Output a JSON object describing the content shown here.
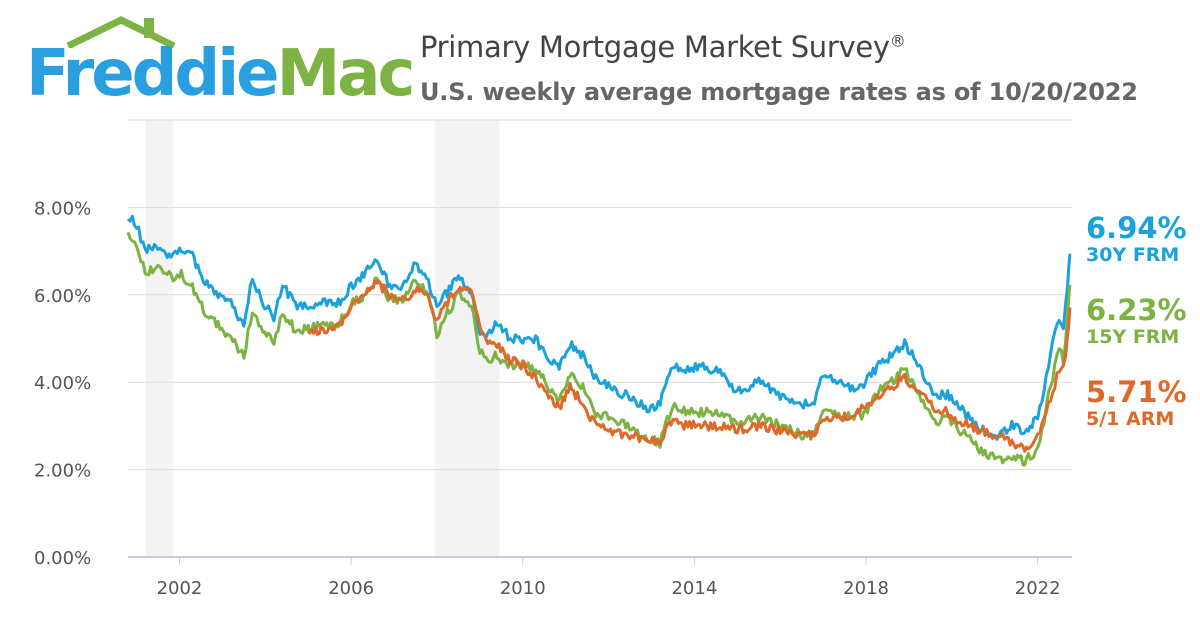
{
  "brand": {
    "logo_part1": "Freddie",
    "logo_part2": "Mac",
    "colors": {
      "blue": "#2a9fe0",
      "green": "#7cb342"
    }
  },
  "header": {
    "title": "Primary Mortgage Market Survey",
    "title_mark": "®",
    "subtitle": "U.S. weekly average mortgage rates as of 10/20/2022"
  },
  "chart_data": {
    "type": "line",
    "title": "Primary Mortgage Market Survey®",
    "subtitle": "U.S. weekly average mortgage rates as of 10/20/2022",
    "xlabel": "",
    "ylabel": "",
    "xlim": [
      2000.8,
      2022.8
    ],
    "ylim": [
      0,
      10
    ],
    "grid": true,
    "x_ticks": [
      "2002",
      "2006",
      "2010",
      "2014",
      "2018",
      "2022"
    ],
    "y_ticks": [
      "0.00%",
      "2.00%",
      "4.00%",
      "6.00%",
      "8.00%"
    ],
    "y_tick_values": [
      0,
      2,
      4,
      6,
      8
    ],
    "x_tick_values": [
      2002,
      2006,
      2010,
      2014,
      2018,
      2022
    ],
    "recessions": [
      [
        2001.2,
        2001.85
      ],
      [
        2007.95,
        2009.45
      ]
    ],
    "legend_position": "right-end-labels",
    "series": [
      {
        "name": "30Y FRM",
        "last_value_label": "6.94%",
        "color": "#1ba1dc",
        "points": [
          [
            2000.8,
            7.8
          ],
          [
            2001.0,
            7.6
          ],
          [
            2001.2,
            7.0
          ],
          [
            2001.5,
            7.1
          ],
          [
            2001.8,
            6.9
          ],
          [
            2002.0,
            7.1
          ],
          [
            2002.3,
            6.9
          ],
          [
            2002.6,
            6.3
          ],
          [
            2002.9,
            6.0
          ],
          [
            2003.2,
            5.8
          ],
          [
            2003.5,
            5.3
          ],
          [
            2003.7,
            6.4
          ],
          [
            2003.9,
            5.9
          ],
          [
            2004.2,
            5.5
          ],
          [
            2004.4,
            6.2
          ],
          [
            2004.7,
            5.8
          ],
          [
            2005.0,
            5.7
          ],
          [
            2005.3,
            5.8
          ],
          [
            2005.7,
            5.8
          ],
          [
            2006.0,
            6.2
          ],
          [
            2006.3,
            6.5
          ],
          [
            2006.6,
            6.8
          ],
          [
            2006.9,
            6.2
          ],
          [
            2007.2,
            6.2
          ],
          [
            2007.5,
            6.7
          ],
          [
            2007.8,
            6.3
          ],
          [
            2008.0,
            5.7
          ],
          [
            2008.2,
            6.0
          ],
          [
            2008.5,
            6.4
          ],
          [
            2008.8,
            6.1
          ],
          [
            2008.95,
            5.2
          ],
          [
            2009.1,
            5.0
          ],
          [
            2009.4,
            5.4
          ],
          [
            2009.7,
            5.0
          ],
          [
            2010.0,
            5.0
          ],
          [
            2010.3,
            5.0
          ],
          [
            2010.6,
            4.5
          ],
          [
            2010.85,
            4.3
          ],
          [
            2011.1,
            4.9
          ],
          [
            2011.4,
            4.6
          ],
          [
            2011.7,
            4.1
          ],
          [
            2012.0,
            3.9
          ],
          [
            2012.4,
            3.7
          ],
          [
            2012.9,
            3.4
          ],
          [
            2013.2,
            3.5
          ],
          [
            2013.5,
            4.4
          ],
          [
            2013.8,
            4.3
          ],
          [
            2014.2,
            4.4
          ],
          [
            2014.6,
            4.2
          ],
          [
            2015.0,
            3.8
          ],
          [
            2015.5,
            4.0
          ],
          [
            2016.0,
            3.7
          ],
          [
            2016.5,
            3.5
          ],
          [
            2016.8,
            3.6
          ],
          [
            2017.0,
            4.2
          ],
          [
            2017.5,
            3.9
          ],
          [
            2017.9,
            3.9
          ],
          [
            2018.3,
            4.4
          ],
          [
            2018.6,
            4.6
          ],
          [
            2018.9,
            4.9
          ],
          [
            2019.2,
            4.4
          ],
          [
            2019.6,
            3.7
          ],
          [
            2019.9,
            3.7
          ],
          [
            2020.2,
            3.4
          ],
          [
            2020.6,
            3.0
          ],
          [
            2020.9,
            2.8
          ],
          [
            2021.1,
            2.8
          ],
          [
            2021.4,
            3.0
          ],
          [
            2021.7,
            2.9
          ],
          [
            2021.95,
            3.1
          ],
          [
            2022.1,
            3.6
          ],
          [
            2022.3,
            4.7
          ],
          [
            2022.5,
            5.5
          ],
          [
            2022.6,
            5.2
          ],
          [
            2022.7,
            6.3
          ],
          [
            2022.75,
            6.94
          ]
        ]
      },
      {
        "name": "15Y FRM",
        "last_value_label": "6.23%",
        "color": "#7cb342",
        "points": [
          [
            2000.8,
            7.4
          ],
          [
            2001.0,
            7.2
          ],
          [
            2001.2,
            6.5
          ],
          [
            2001.5,
            6.6
          ],
          [
            2001.8,
            6.4
          ],
          [
            2002.0,
            6.5
          ],
          [
            2002.3,
            6.2
          ],
          [
            2002.6,
            5.6
          ],
          [
            2002.9,
            5.3
          ],
          [
            2003.2,
            5.0
          ],
          [
            2003.5,
            4.6
          ],
          [
            2003.7,
            5.6
          ],
          [
            2003.9,
            5.3
          ],
          [
            2004.2,
            4.9
          ],
          [
            2004.4,
            5.6
          ],
          [
            2004.7,
            5.2
          ],
          [
            2005.0,
            5.2
          ],
          [
            2005.3,
            5.3
          ],
          [
            2005.7,
            5.3
          ],
          [
            2006.0,
            5.8
          ],
          [
            2006.3,
            6.0
          ],
          [
            2006.6,
            6.4
          ],
          [
            2006.9,
            5.9
          ],
          [
            2007.2,
            5.9
          ],
          [
            2007.5,
            6.3
          ],
          [
            2007.8,
            6.0
          ],
          [
            2008.0,
            5.1
          ],
          [
            2008.2,
            5.5
          ],
          [
            2008.5,
            6.0
          ],
          [
            2008.8,
            5.8
          ],
          [
            2008.95,
            4.9
          ],
          [
            2009.1,
            4.5
          ],
          [
            2009.4,
            4.6
          ],
          [
            2009.7,
            4.4
          ],
          [
            2010.0,
            4.4
          ],
          [
            2010.3,
            4.3
          ],
          [
            2010.6,
            3.9
          ],
          [
            2010.85,
            3.6
          ],
          [
            2011.1,
            4.2
          ],
          [
            2011.4,
            3.9
          ],
          [
            2011.7,
            3.3
          ],
          [
            2012.0,
            3.2
          ],
          [
            2012.4,
            3.0
          ],
          [
            2012.9,
            2.7
          ],
          [
            2013.2,
            2.6
          ],
          [
            2013.5,
            3.5
          ],
          [
            2013.8,
            3.3
          ],
          [
            2014.2,
            3.3
          ],
          [
            2014.6,
            3.3
          ],
          [
            2015.0,
            3.1
          ],
          [
            2015.5,
            3.2
          ],
          [
            2016.0,
            3.0
          ],
          [
            2016.5,
            2.8
          ],
          [
            2016.8,
            2.8
          ],
          [
            2017.0,
            3.4
          ],
          [
            2017.5,
            3.2
          ],
          [
            2017.9,
            3.2
          ],
          [
            2018.3,
            3.8
          ],
          [
            2018.6,
            4.0
          ],
          [
            2018.9,
            4.3
          ],
          [
            2019.2,
            3.8
          ],
          [
            2019.6,
            3.1
          ],
          [
            2019.9,
            3.2
          ],
          [
            2020.2,
            2.9
          ],
          [
            2020.6,
            2.5
          ],
          [
            2020.9,
            2.3
          ],
          [
            2021.1,
            2.2
          ],
          [
            2021.4,
            2.3
          ],
          [
            2021.7,
            2.2
          ],
          [
            2021.95,
            2.4
          ],
          [
            2022.1,
            2.9
          ],
          [
            2022.3,
            3.9
          ],
          [
            2022.5,
            4.8
          ],
          [
            2022.6,
            4.5
          ],
          [
            2022.7,
            5.5
          ],
          [
            2022.75,
            6.23
          ]
        ]
      },
      {
        "name": "5/1 ARM",
        "last_value_label": "5.71%",
        "color": "#dd6a2a",
        "points": [
          [
            2005.0,
            5.1
          ],
          [
            2005.3,
            5.2
          ],
          [
            2005.7,
            5.3
          ],
          [
            2006.0,
            5.7
          ],
          [
            2006.3,
            6.0
          ],
          [
            2006.6,
            6.3
          ],
          [
            2006.9,
            6.0
          ],
          [
            2007.2,
            5.9
          ],
          [
            2007.5,
            6.1
          ],
          [
            2007.8,
            6.0
          ],
          [
            2008.0,
            5.4
          ],
          [
            2008.2,
            5.8
          ],
          [
            2008.5,
            6.1
          ],
          [
            2008.8,
            6.2
          ],
          [
            2008.95,
            5.5
          ],
          [
            2009.1,
            5.0
          ],
          [
            2009.4,
            4.9
          ],
          [
            2009.7,
            4.5
          ],
          [
            2010.0,
            4.4
          ],
          [
            2010.3,
            4.1
          ],
          [
            2010.6,
            3.7
          ],
          [
            2010.85,
            3.4
          ],
          [
            2011.1,
            3.9
          ],
          [
            2011.4,
            3.5
          ],
          [
            2011.7,
            3.0
          ],
          [
            2012.0,
            2.9
          ],
          [
            2012.4,
            2.8
          ],
          [
            2012.9,
            2.7
          ],
          [
            2013.2,
            2.6
          ],
          [
            2013.5,
            3.2
          ],
          [
            2013.8,
            3.0
          ],
          [
            2014.2,
            3.0
          ],
          [
            2014.6,
            3.0
          ],
          [
            2015.0,
            2.9
          ],
          [
            2015.5,
            3.0
          ],
          [
            2016.0,
            2.9
          ],
          [
            2016.5,
            2.8
          ],
          [
            2016.8,
            2.8
          ],
          [
            2017.0,
            3.2
          ],
          [
            2017.5,
            3.2
          ],
          [
            2017.9,
            3.4
          ],
          [
            2018.3,
            3.7
          ],
          [
            2018.6,
            3.9
          ],
          [
            2018.9,
            4.1
          ],
          [
            2019.2,
            3.8
          ],
          [
            2019.6,
            3.4
          ],
          [
            2019.9,
            3.3
          ],
          [
            2020.2,
            3.1
          ],
          [
            2020.6,
            2.9
          ],
          [
            2020.9,
            2.8
          ],
          [
            2021.1,
            2.8
          ],
          [
            2021.4,
            2.6
          ],
          [
            2021.7,
            2.5
          ],
          [
            2021.95,
            2.6
          ],
          [
            2022.1,
            3.0
          ],
          [
            2022.3,
            3.6
          ],
          [
            2022.5,
            4.3
          ],
          [
            2022.6,
            4.3
          ],
          [
            2022.7,
            5.1
          ],
          [
            2022.75,
            5.71
          ]
        ]
      }
    ]
  }
}
